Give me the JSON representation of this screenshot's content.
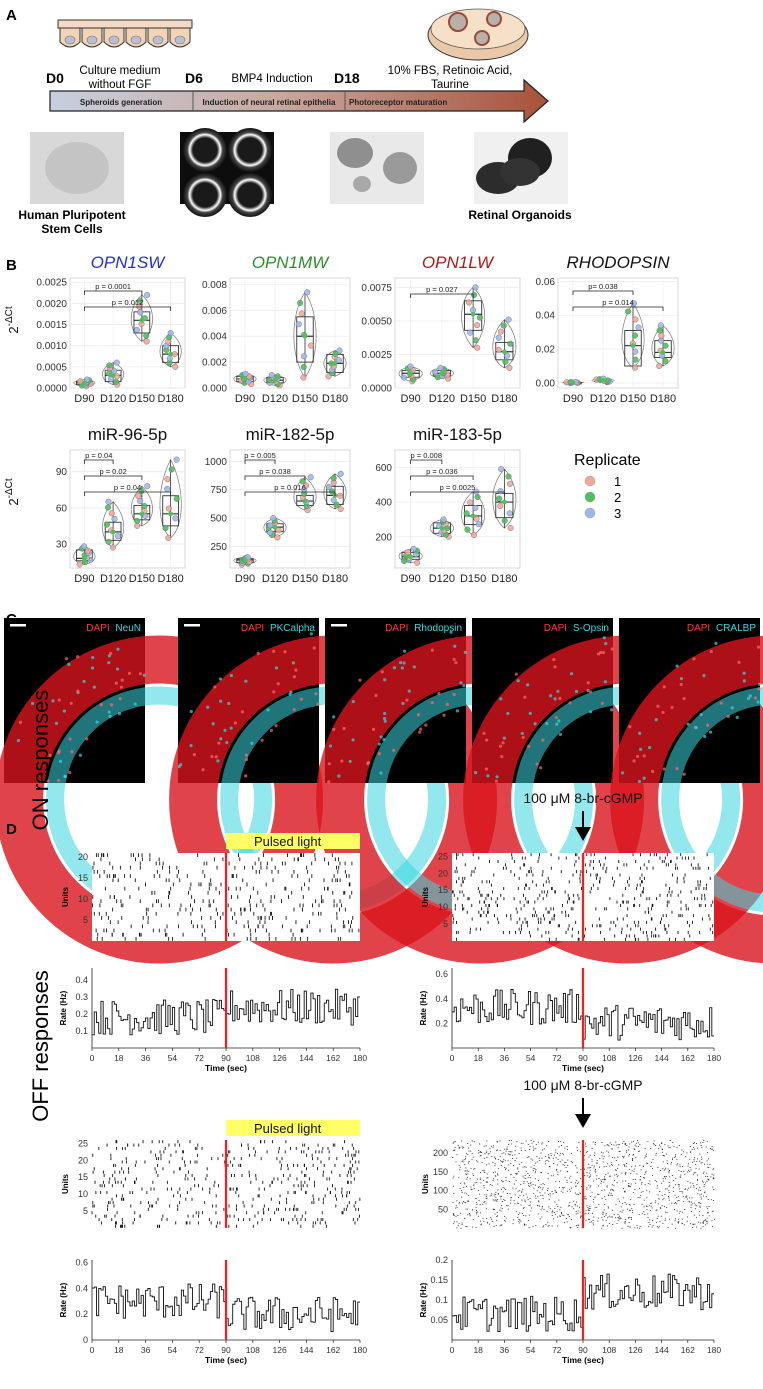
{
  "colors": {
    "rep1": "#f4a69b",
    "rep2": "#4fbf5f",
    "rep3": "#9db8ef",
    "opn1sw": "#1f2ee0",
    "opn1mw": "#2a8f2a",
    "opn1lw": "#b01818",
    "arrow_from": "#c7cfe0",
    "arrow_to": "#a8523a",
    "stim": "#ff1a1a",
    "banner": "#ffff66",
    "tissue_red": "#d9141d",
    "tissue_cyan": "#3ad6df"
  },
  "panelA": {
    "letter": "A",
    "days": [
      "D0",
      "D6",
      "D18"
    ],
    "medium_line1": "Culture medium",
    "medium_line2": "without FGF",
    "bmp4": "BMP4 Induction",
    "fbs_line1": "10% FBS, Retinoic Acid,",
    "fbs_line2": "Taurine",
    "stages": [
      "Spheroids generation",
      "Induction of neural retinal epithelia",
      "Photoreceptor maturation"
    ],
    "hpsc_line1": "Human Pluripotent",
    "hpsc_line2": "Stem Cells",
    "organoids": "Retinal Organoids"
  },
  "panelB": {
    "letter": "B",
    "ylabel_base": "2",
    "ylabel_exp": "-ΔCt",
    "days": [
      "D90",
      "D120",
      "D150",
      "D180"
    ],
    "legend": {
      "title": "Replicate",
      "items": [
        "1",
        "2",
        "3"
      ]
    },
    "row1": [
      {
        "title": "OPN1SW",
        "italic": true,
        "title_color": "#1f2ee0",
        "ylim": [
          0,
          0.0026
        ],
        "ticks": [
          "0.0000",
          "0.0005",
          "0.0010",
          "0.0015",
          "0.0020",
          "0.0025"
        ],
        "tick_values": [
          0,
          0.0005,
          0.001,
          0.0015,
          0.002,
          0.0025
        ],
        "medians": [
          0.00012,
          0.0003,
          0.0016,
          0.0008
        ],
        "q1": [
          8e-05,
          0.00015,
          0.0013,
          0.0006
        ],
        "q3": [
          0.00016,
          0.00042,
          0.0018,
          0.001
        ],
        "lo": [
          4e-05,
          8e-05,
          0.0011,
          0.0005
        ],
        "hi": [
          0.0002,
          0.0006,
          0.0022,
          0.0013
        ],
        "pvals": [
          {
            "from": 0,
            "to": 2,
            "label": "p = 0.0001"
          },
          {
            "from": 0,
            "to": 3,
            "label": "p = 0.012"
          }
        ]
      },
      {
        "title": "OPN1MW",
        "italic": true,
        "title_color": "#2a8f2a",
        "ylim": [
          0,
          0.0085
        ],
        "ticks": [
          "0.000",
          "0.002",
          "0.004",
          "0.006",
          "0.008"
        ],
        "tick_values": [
          0,
          0.002,
          0.004,
          0.006,
          0.008
        ],
        "medians": [
          0.0007,
          0.0006,
          0.004,
          0.0019
        ],
        "q1": [
          0.0005,
          0.0004,
          0.002,
          0.0012
        ],
        "q3": [
          0.0009,
          0.0008,
          0.0055,
          0.0026
        ],
        "lo": [
          0.0003,
          0.0002,
          0.0008,
          0.0009
        ],
        "hi": [
          0.0011,
          0.001,
          0.0074,
          0.0029
        ],
        "pvals": []
      },
      {
        "title": "OPN1LW",
        "italic": true,
        "title_color": "#b01818",
        "ylim": [
          0,
          0.0082
        ],
        "ticks": [
          "0.0000",
          "0.0025",
          "0.0050",
          "0.0075"
        ],
        "tick_values": [
          0,
          0.0025,
          0.005,
          0.0075
        ],
        "medians": [
          0.0011,
          0.0011,
          0.0055,
          0.0027
        ],
        "q1": [
          0.0008,
          0.0009,
          0.0043,
          0.0021
        ],
        "q3": [
          0.0013,
          0.0013,
          0.0065,
          0.0034
        ],
        "lo": [
          0.0005,
          0.0007,
          0.003,
          0.0015
        ],
        "hi": [
          0.0016,
          0.0015,
          0.0075,
          0.0051
        ],
        "pvals": [
          {
            "from": 0,
            "to": 2,
            "label": "p = 0.027"
          }
        ]
      },
      {
        "title": "RHODOPSIN",
        "italic": true,
        "title_color": "#111111",
        "ylim": [
          -0.003,
          0.062
        ],
        "ticks": [
          "0.00",
          "0.02",
          "0.04",
          "0.06"
        ],
        "tick_values": [
          0,
          0.02,
          0.04,
          0.06
        ],
        "medians": [
          0.0002,
          0.0015,
          0.022,
          0.018
        ],
        "q1": [
          0.0001,
          0.0008,
          0.01,
          0.015
        ],
        "q3": [
          0.0003,
          0.002,
          0.031,
          0.025
        ],
        "lo": [
          0.0,
          0.0004,
          0.009,
          0.01
        ],
        "hi": [
          0.0005,
          0.0025,
          0.047,
          0.034
        ],
        "pvals": [
          {
            "from": 0,
            "to": 2,
            "label": "p= 0.038"
          },
          {
            "from": 0,
            "to": 3,
            "label": "p = 0.014"
          }
        ]
      }
    ],
    "row2": [
      {
        "title": "miR-96-5p",
        "italic": false,
        "title_color": "#111111",
        "ylim": [
          10,
          108
        ],
        "ticks": [
          "30",
          "60",
          "90"
        ],
        "tick_values": [
          30,
          60,
          90
        ],
        "medians": [
          18,
          40,
          55,
          55
        ],
        "q1": [
          16,
          33,
          50,
          45
        ],
        "q3": [
          25,
          48,
          62,
          70
        ],
        "lo": [
          13,
          27,
          45,
          35
        ],
        "hi": [
          28,
          65,
          78,
          100
        ],
        "pvals": [
          {
            "from": 0,
            "to": 1,
            "label": "p = 0.04"
          },
          {
            "from": 0,
            "to": 2,
            "label": "p = 0.02"
          },
          {
            "from": 0,
            "to": 3,
            "label": "p = 0.04"
          }
        ]
      },
      {
        "title": "miR-182-5p",
        "italic": false,
        "title_color": "#111111",
        "ylim": [
          60,
          1100
        ],
        "ticks": [
          "250",
          "500",
          "750",
          "1000"
        ],
        "tick_values": [
          250,
          500,
          750,
          1000
        ],
        "medians": [
          130,
          420,
          650,
          700
        ],
        "q1": [
          110,
          380,
          610,
          620
        ],
        "q3": [
          140,
          450,
          700,
          780
        ],
        "lo": [
          90,
          330,
          570,
          580
        ],
        "hi": [
          155,
          500,
          860,
          890
        ],
        "pvals": [
          {
            "from": 0,
            "to": 1,
            "label": "p = 0.005"
          },
          {
            "from": 0,
            "to": 2,
            "label": "p = 0.038"
          },
          {
            "from": 0,
            "to": 3,
            "label": "p = 0.016"
          }
        ]
      },
      {
        "title": "miR-183-5p",
        "italic": false,
        "title_color": "#111111",
        "ylim": [
          20,
          700
        ],
        "ticks": [
          "200",
          "400",
          "600"
        ],
        "tick_values": [
          200,
          400,
          600
        ],
        "medians": [
          85,
          250,
          320,
          400
        ],
        "q1": [
          70,
          220,
          270,
          310
        ],
        "q3": [
          110,
          280,
          380,
          450
        ],
        "lo": [
          50,
          200,
          210,
          250
        ],
        "hi": [
          130,
          300,
          460,
          590
        ],
        "pvals": [
          {
            "from": 0,
            "to": 1,
            "label": "p = 0.008"
          },
          {
            "from": 0,
            "to": 2,
            "label": "p = 0.036"
          },
          {
            "from": 0,
            "to": 3,
            "label": "p = 0.0025"
          }
        ]
      }
    ]
  },
  "panelC": {
    "letter": "C",
    "stain_base": "DAPI",
    "markers": [
      "NeuN",
      "PKCalpha",
      "Rhodopsin",
      "S-Opsin",
      "CRALBP"
    ]
  },
  "panelD": {
    "letter": "D",
    "row_labels": [
      "ON responses",
      "OFF responses"
    ],
    "light_label": "Pulsed light",
    "drug_label": "100 μM 8-br-cGMP",
    "raster_ylabel": "Units",
    "rate_ylabel": "Rate (Hz)",
    "xlabel": "Time (sec)",
    "xticks": [
      "0",
      "18",
      "36",
      "54",
      "72",
      "90",
      "108",
      "126",
      "144",
      "162",
      "180"
    ],
    "stim_time": 90,
    "subplots": [
      {
        "units_ticks": [
          "5",
          "10",
          "15",
          "20"
        ],
        "unit_values": [
          5,
          10,
          15,
          20
        ],
        "n_units": 21,
        "rate_ticks": [
          "0.1",
          "0.2",
          "0.3",
          "0.4"
        ],
        "rate_values": [
          0.1,
          0.2,
          0.3,
          0.4
        ],
        "rate_ylim": [
          0,
          0.47
        ],
        "rate_mean_pre": 0.18,
        "rate_mean_post": 0.24
      },
      {
        "units_ticks": [
          "5",
          "10",
          "15",
          "20",
          "25"
        ],
        "unit_values": [
          5,
          10,
          15,
          20,
          25
        ],
        "n_units": 26,
        "rate_ticks": [
          "0.2",
          "0.4",
          "0.6"
        ],
        "rate_values": [
          0.2,
          0.4,
          0.6
        ],
        "rate_ylim": [
          0,
          0.65
        ],
        "rate_mean_pre": 0.33,
        "rate_mean_post": 0.21
      },
      {
        "units_ticks": [
          "5",
          "10",
          "15",
          "20",
          "25"
        ],
        "unit_values": [
          5,
          10,
          15,
          20,
          25
        ],
        "n_units": 26,
        "rate_ticks": [
          "0",
          "0.2",
          "0.4",
          "0.6"
        ],
        "rate_values": [
          0,
          0.2,
          0.4,
          0.6
        ],
        "rate_ylim": [
          0,
          0.62
        ],
        "rate_mean_pre": 0.3,
        "rate_mean_post": 0.2
      },
      {
        "units_ticks": [
          "50",
          "100",
          "150",
          "200"
        ],
        "unit_values": [
          50,
          100,
          150,
          200
        ],
        "n_units": 235,
        "rate_ticks": [
          "0.05",
          "0.1",
          "0.15",
          "0.2"
        ],
        "rate_values": [
          0.05,
          0.1,
          0.15,
          0.2
        ],
        "rate_ylim": [
          0,
          0.2
        ],
        "rate_mean_pre": 0.065,
        "rate_mean_post": 0.12
      }
    ]
  }
}
